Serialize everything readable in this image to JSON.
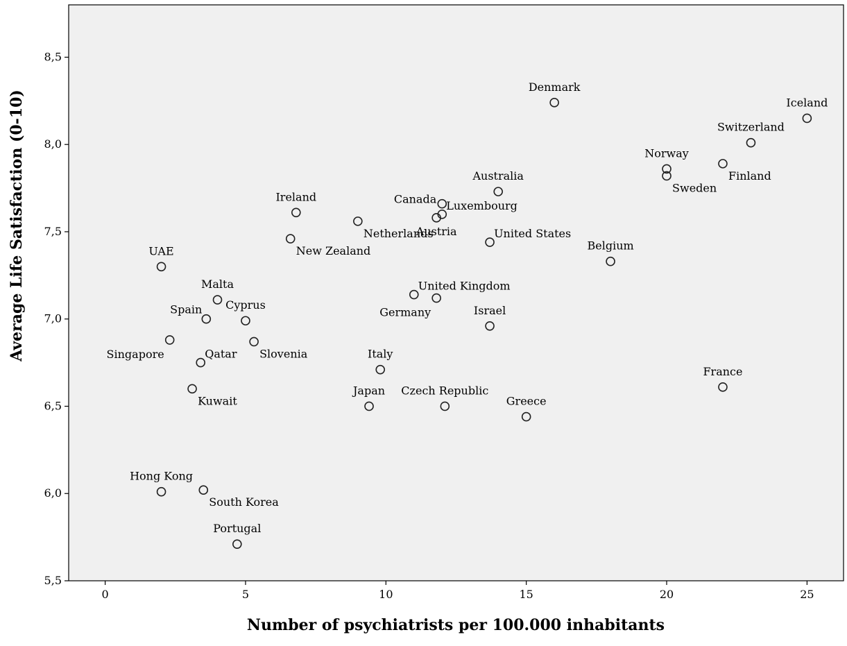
{
  "chart_data": {
    "type": "scatter",
    "xlabel": "Number of psychiatrists per 100.000 inhabitants",
    "ylabel": "Average Life Satisfaction (0-10)",
    "xlim": [
      -1.3,
      26.3
    ],
    "ylim": [
      5.5,
      8.8
    ],
    "x_ticks": [
      {
        "value": 0,
        "label": "0"
      },
      {
        "value": 5,
        "label": "5"
      },
      {
        "value": 10,
        "label": "10"
      },
      {
        "value": 15,
        "label": "15"
      },
      {
        "value": 20,
        "label": "20"
      },
      {
        "value": 25,
        "label": "25"
      }
    ],
    "y_ticks": [
      {
        "value": 5.5,
        "label": "5,5"
      },
      {
        "value": 6.0,
        "label": "6,0"
      },
      {
        "value": 6.5,
        "label": "6,5"
      },
      {
        "value": 7.0,
        "label": "7,0"
      },
      {
        "value": 7.5,
        "label": "7,5"
      },
      {
        "value": 8.0,
        "label": "8,0"
      },
      {
        "value": 8.5,
        "label": "8,5"
      }
    ],
    "grid": false,
    "legend": false,
    "colors": {
      "plot_background": "#f0f0f0",
      "marker_stroke": "#222222",
      "axis": "#000000"
    },
    "points": [
      {
        "label": "Denmark",
        "x": 16.0,
        "y": 8.24,
        "pos": "above"
      },
      {
        "label": "Iceland",
        "x": 25.0,
        "y": 8.15,
        "pos": "above"
      },
      {
        "label": "Switzerland",
        "x": 23.0,
        "y": 8.01,
        "pos": "above"
      },
      {
        "label": "Norway",
        "x": 20.0,
        "y": 7.86,
        "pos": "above"
      },
      {
        "label": "Sweden",
        "x": 20.0,
        "y": 7.82,
        "pos": "below-right"
      },
      {
        "label": "Finland",
        "x": 22.0,
        "y": 7.89,
        "pos": "below-right"
      },
      {
        "label": "Australia",
        "x": 14.0,
        "y": 7.73,
        "pos": "above"
      },
      {
        "label": "Canada",
        "x": 12.0,
        "y": 7.66,
        "pos": "left"
      },
      {
        "label": "Luxembourg",
        "x": 12.0,
        "y": 7.6,
        "pos": "above-right"
      },
      {
        "label": "Austria",
        "x": 11.8,
        "y": 7.58,
        "pos": "below"
      },
      {
        "label": "United States",
        "x": 13.7,
        "y": 7.44,
        "pos": "above-right"
      },
      {
        "label": "Ireland",
        "x": 6.8,
        "y": 7.61,
        "pos": "above"
      },
      {
        "label": "Netherlands",
        "x": 9.0,
        "y": 7.56,
        "pos": "below-right"
      },
      {
        "label": "New Zealand",
        "x": 6.6,
        "y": 7.46,
        "pos": "below-right"
      },
      {
        "label": "UAE",
        "x": 2.0,
        "y": 7.3,
        "pos": "above"
      },
      {
        "label": "Belgium",
        "x": 18.0,
        "y": 7.33,
        "pos": "above"
      },
      {
        "label": "Malta",
        "x": 4.0,
        "y": 7.11,
        "pos": "above"
      },
      {
        "label": "United Kingdom",
        "x": 11.0,
        "y": 7.14,
        "pos": "above-right"
      },
      {
        "label": "Germany",
        "x": 11.8,
        "y": 7.12,
        "pos": "below-left"
      },
      {
        "label": "Spain",
        "x": 3.6,
        "y": 7.0,
        "pos": "above-left"
      },
      {
        "label": "Cyprus",
        "x": 5.0,
        "y": 6.99,
        "pos": "above"
      },
      {
        "label": "Israel",
        "x": 13.7,
        "y": 6.96,
        "pos": "above"
      },
      {
        "label": "Singapore",
        "x": 2.3,
        "y": 6.88,
        "pos": "below-left"
      },
      {
        "label": "Slovenia",
        "x": 5.3,
        "y": 6.87,
        "pos": "below-right"
      },
      {
        "label": "Qatar",
        "x": 3.4,
        "y": 6.75,
        "pos": "above-right"
      },
      {
        "label": "Italy",
        "x": 9.8,
        "y": 6.71,
        "pos": "above"
      },
      {
        "label": "France",
        "x": 22.0,
        "y": 6.61,
        "pos": "above"
      },
      {
        "label": "Kuwait",
        "x": 3.1,
        "y": 6.6,
        "pos": "below-right"
      },
      {
        "label": "Japan",
        "x": 9.4,
        "y": 6.5,
        "pos": "above"
      },
      {
        "label": "Czech Republic",
        "x": 12.1,
        "y": 6.5,
        "pos": "above"
      },
      {
        "label": "Greece",
        "x": 15.0,
        "y": 6.44,
        "pos": "above"
      },
      {
        "label": "Hong Kong",
        "x": 2.0,
        "y": 6.01,
        "pos": "above"
      },
      {
        "label": "South Korea",
        "x": 3.5,
        "y": 6.02,
        "pos": "below-right"
      },
      {
        "label": "Portugal",
        "x": 4.7,
        "y": 5.71,
        "pos": "above"
      }
    ]
  }
}
